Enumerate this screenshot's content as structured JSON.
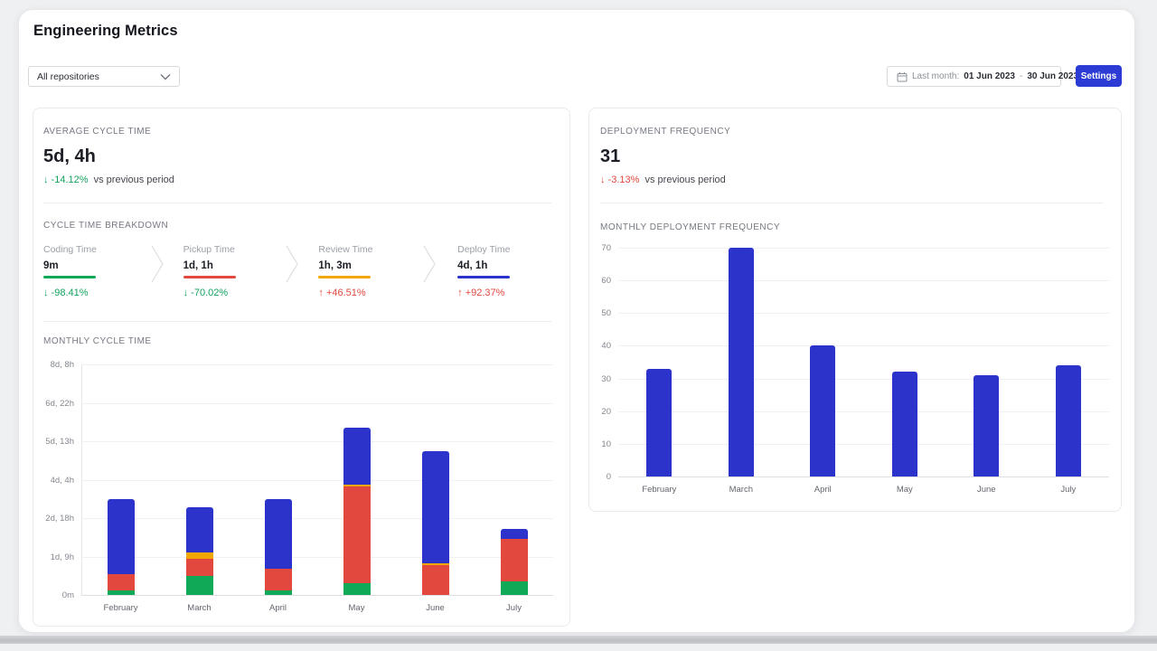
{
  "theme": {
    "accent_blue": "#2b3bd3",
    "bar_blue": "#2b33cb",
    "bar_red": "#e2483d",
    "bar_green": "#0fa958",
    "bar_yellow": "#f2a600",
    "delta_green": "#12a35d",
    "delta_red": "#e2483d"
  },
  "page": {
    "title": "Engineering Metrics"
  },
  "toolbar": {
    "repo_filter": {
      "value": "All repositories"
    },
    "date_range": {
      "calendar_icon": "calendar",
      "prefix": "Last month:",
      "start": "01 Jun 2023",
      "separator": "-",
      "end": "30 Jun 2023"
    },
    "settings_label": "Settings"
  },
  "cycle": {
    "summary": {
      "label": "AVERAGE CYCLE TIME",
      "value": "5d, 4h",
      "delta_arrow": "↓",
      "delta": "-14.12%",
      "delta_color": "#12a35d",
      "suffix": "vs previous period"
    },
    "breakdown": {
      "label": "CYCLE TIME BREAKDOWN",
      "items": [
        {
          "label": "Coding Time",
          "value": "9m",
          "color": "#0fa958",
          "delta_arrow": "↓",
          "delta": "-98.41%",
          "delta_color": "#12a35d"
        },
        {
          "label": "Pickup Time",
          "value": "1d, 1h",
          "color": "#e2483d",
          "delta_arrow": "↓",
          "delta": "-70.02%",
          "delta_color": "#12a35d"
        },
        {
          "label": "Review Time",
          "value": "1h, 3m",
          "color": "#f2a600",
          "delta_arrow": "↑",
          "delta": "+46.51%",
          "delta_color": "#e2483d"
        },
        {
          "label": "Deploy Time",
          "value": "4d, 1h",
          "color": "#2b33cb",
          "delta_arrow": "↑",
          "delta": "+92.37%",
          "delta_color": "#e2483d"
        }
      ]
    }
  },
  "deploy": {
    "summary": {
      "label": "DEPLOYMENT FREQUENCY",
      "value": "31",
      "delta_arrow": "↓",
      "delta": "-3.13%",
      "delta_color": "#e2483d",
      "suffix": "vs previous period"
    }
  },
  "chart_data": [
    {
      "type": "bar",
      "stacked": true,
      "title": "MONTHLY CYCLE TIME",
      "categories": [
        "February",
        "March",
        "April",
        "May",
        "June",
        "July"
      ],
      "unit": "hours",
      "ymax": 200,
      "y_tick_labels": [
        "8d, 8h",
        "6d, 22h",
        "5d, 13h",
        "4d, 4h",
        "2d, 18h",
        "1d, 9h",
        "0m"
      ],
      "series": [
        {
          "name": "Coding Time",
          "color": "#0fa958",
          "values": [
            4,
            16.5,
            4,
            10.5,
            0,
            11.5
          ]
        },
        {
          "name": "Pickup Time",
          "color": "#e2483d",
          "values": [
            14,
            15,
            19,
            84,
            26,
            37.5
          ]
        },
        {
          "name": "Review Time",
          "color": "#f2a600",
          "values": [
            0,
            5.5,
            0,
            1.5,
            1.5,
            0
          ]
        },
        {
          "name": "Deploy Time",
          "color": "#2b33cb",
          "values": [
            65,
            39,
            60,
            49,
            97,
            8
          ]
        }
      ],
      "grid": true,
      "legend": "none"
    },
    {
      "type": "bar",
      "stacked": false,
      "title": "MONTHLY DEPLOYMENT FREQUENCY",
      "categories": [
        "February",
        "March",
        "April",
        "May",
        "June",
        "July"
      ],
      "unit": "deployments",
      "ymax": 70,
      "y_tick_labels": [
        "70",
        "60",
        "50",
        "40",
        "30",
        "20",
        "10",
        "0"
      ],
      "values": [
        33,
        70,
        40,
        32,
        31,
        34
      ],
      "bar_color": "#2b33cb",
      "grid": true,
      "legend": "none"
    }
  ]
}
